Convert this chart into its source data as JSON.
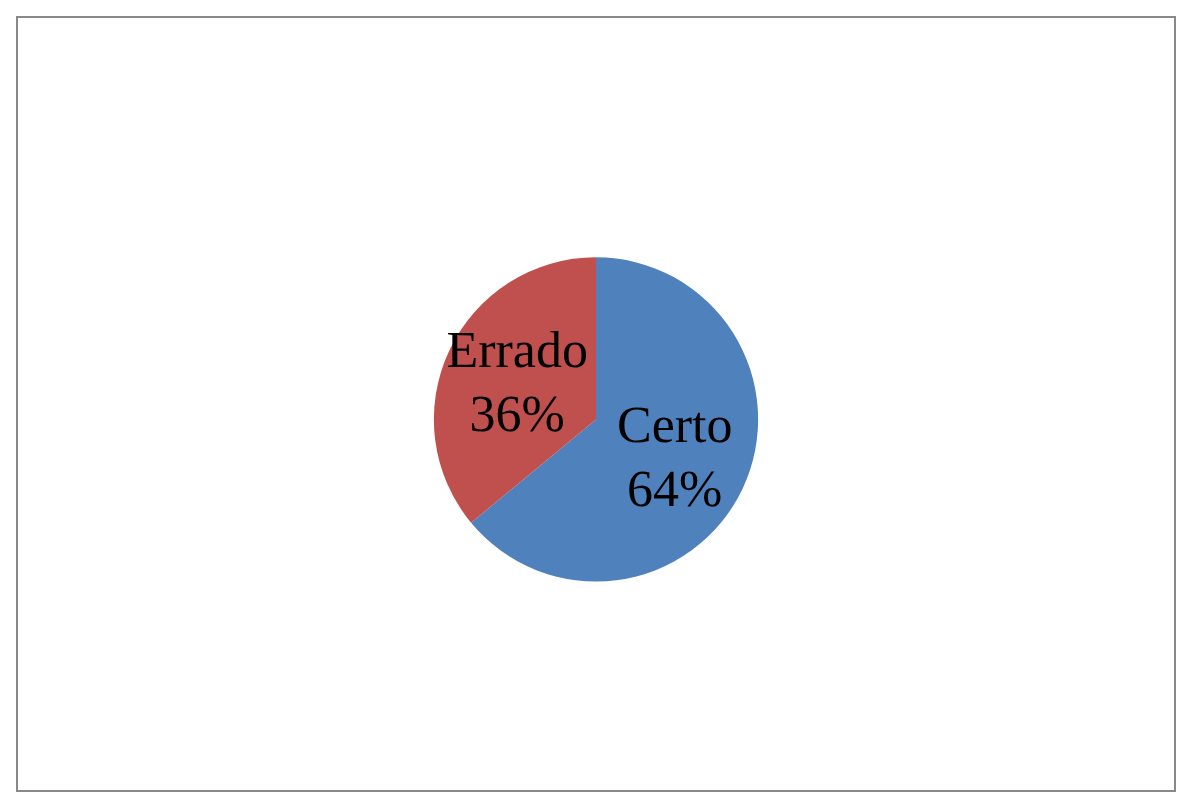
{
  "chart_data": {
    "type": "pie",
    "categories": [
      "Certo",
      "Errado"
    ],
    "values": [
      64,
      36
    ],
    "value_labels": [
      "64%",
      "36%"
    ],
    "colors": [
      "#4f81bd",
      "#c0504d"
    ]
  }
}
